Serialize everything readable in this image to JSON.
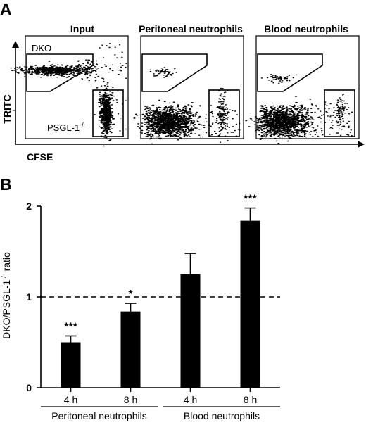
{
  "panel_a": {
    "label": "A",
    "y_axis_label": "TRITC",
    "x_axis_label": "CFSE",
    "gate_labels": {
      "dko": "DKO",
      "psgl_base": "PSGL-1",
      "psgl_sup": "-/-"
    },
    "subplots": [
      {
        "title": "Input"
      },
      {
        "title": "Peritoneal neutrophils"
      },
      {
        "title": "Blood neutrophils"
      }
    ]
  },
  "chart_data": {
    "type": "bar",
    "panel_label": "B",
    "ylabel_base": "DKO/PSGL-1",
    "ylabel_sup": "-/-",
    "ylabel_tail": " ratio",
    "ylim": [
      0,
      2
    ],
    "yticks": [
      "0",
      "1",
      "2"
    ],
    "reference_line": 1,
    "categories": [
      "4 h",
      "8 h",
      "4 h",
      "8 h"
    ],
    "values": [
      0.5,
      0.84,
      1.25,
      1.84
    ],
    "errors": [
      0.07,
      0.09,
      0.23,
      0.14
    ],
    "significance": [
      "***",
      "*",
      "",
      "***"
    ],
    "groups": [
      {
        "label": "Peritoneal neutrophils",
        "span": [
          0,
          1
        ]
      },
      {
        "label": "Blood neutrophils",
        "span": [
          2,
          3
        ]
      }
    ],
    "bar_color": "#000000"
  }
}
